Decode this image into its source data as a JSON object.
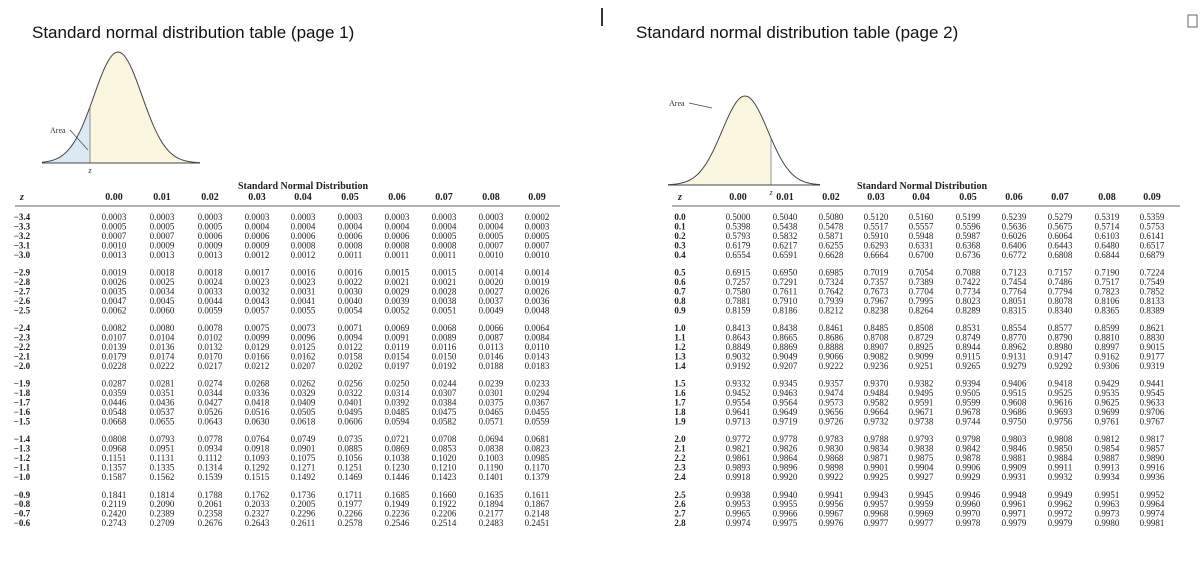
{
  "pages": [
    {
      "title": "Standard normal distribution table (page 1)",
      "graph": {
        "area_label": "Area",
        "z_label": "z"
      },
      "table": {
        "title": "Standard Normal Distribution",
        "header": [
          "z",
          "0.00",
          "0.01",
          "0.02",
          "0.03",
          "0.04",
          "0.05",
          "0.06",
          "0.07",
          "0.08",
          "0.09"
        ],
        "rows": [
          [
            "−3.4",
            "0.0003",
            "0.0003",
            "0.0003",
            "0.0003",
            "0.0003",
            "0.0003",
            "0.0003",
            "0.0003",
            "0.0003",
            "0.0002"
          ],
          [
            "−3.3",
            "0.0005",
            "0.0005",
            "0.0005",
            "0.0004",
            "0.0004",
            "0.0004",
            "0.0004",
            "0.0004",
            "0.0004",
            "0.0003"
          ],
          [
            "−3.2",
            "0.0007",
            "0.0007",
            "0.0006",
            "0.0006",
            "0.0006",
            "0.0006",
            "0.0006",
            "0.0005",
            "0.0005",
            "0.0005"
          ],
          [
            "−3.1",
            "0.0010",
            "0.0009",
            "0.0009",
            "0.0009",
            "0.0008",
            "0.0008",
            "0.0008",
            "0.0008",
            "0.0007",
            "0.0007"
          ],
          [
            "−3.0",
            "0.0013",
            "0.0013",
            "0.0013",
            "0.0012",
            "0.0012",
            "0.0011",
            "0.0011",
            "0.0011",
            "0.0010",
            "0.0010"
          ],
          [
            "−2.9",
            "0.0019",
            "0.0018",
            "0.0018",
            "0.0017",
            "0.0016",
            "0.0016",
            "0.0015",
            "0.0015",
            "0.0014",
            "0.0014"
          ],
          [
            "−2.8",
            "0.0026",
            "0.0025",
            "0.0024",
            "0.0023",
            "0.0023",
            "0.0022",
            "0.0021",
            "0.0021",
            "0.0020",
            "0.0019"
          ],
          [
            "−2.7",
            "0.0035",
            "0.0034",
            "0.0033",
            "0.0032",
            "0.0031",
            "0.0030",
            "0.0029",
            "0.0028",
            "0.0027",
            "0.0026"
          ],
          [
            "−2.6",
            "0.0047",
            "0.0045",
            "0.0044",
            "0.0043",
            "0.0041",
            "0.0040",
            "0.0039",
            "0.0038",
            "0.0037",
            "0.0036"
          ],
          [
            "−2.5",
            "0.0062",
            "0.0060",
            "0.0059",
            "0.0057",
            "0.0055",
            "0.0054",
            "0.0052",
            "0.0051",
            "0.0049",
            "0.0048"
          ],
          [
            "−2.4",
            "0.0082",
            "0.0080",
            "0.0078",
            "0.0075",
            "0.0073",
            "0.0071",
            "0.0069",
            "0.0068",
            "0.0066",
            "0.0064"
          ],
          [
            "−2.3",
            "0.0107",
            "0.0104",
            "0.0102",
            "0.0099",
            "0.0096",
            "0.0094",
            "0.0091",
            "0.0089",
            "0.0087",
            "0.0084"
          ],
          [
            "−2.2",
            "0.0139",
            "0.0136",
            "0.0132",
            "0.0129",
            "0.0125",
            "0.0122",
            "0.0119",
            "0.0116",
            "0.0113",
            "0.0110"
          ],
          [
            "−2.1",
            "0.0179",
            "0.0174",
            "0.0170",
            "0.0166",
            "0.0162",
            "0.0158",
            "0.0154",
            "0.0150",
            "0.0146",
            "0.0143"
          ],
          [
            "−2.0",
            "0.0228",
            "0.0222",
            "0.0217",
            "0.0212",
            "0.0207",
            "0.0202",
            "0.0197",
            "0.0192",
            "0.0188",
            "0.0183"
          ],
          [
            "−1.9",
            "0.0287",
            "0.0281",
            "0.0274",
            "0.0268",
            "0.0262",
            "0.0256",
            "0.0250",
            "0.0244",
            "0.0239",
            "0.0233"
          ],
          [
            "−1.8",
            "0.0359",
            "0.0351",
            "0.0344",
            "0.0336",
            "0.0329",
            "0.0322",
            "0.0314",
            "0.0307",
            "0.0301",
            "0.0294"
          ],
          [
            "−1.7",
            "0.0446",
            "0.0436",
            "0.0427",
            "0.0418",
            "0.0409",
            "0.0401",
            "0.0392",
            "0.0384",
            "0.0375",
            "0.0367"
          ],
          [
            "−1.6",
            "0.0548",
            "0.0537",
            "0.0526",
            "0.0516",
            "0.0505",
            "0.0495",
            "0.0485",
            "0.0475",
            "0.0465",
            "0.0455"
          ],
          [
            "−1.5",
            "0.0668",
            "0.0655",
            "0.0643",
            "0.0630",
            "0.0618",
            "0.0606",
            "0.0594",
            "0.0582",
            "0.0571",
            "0.0559"
          ],
          [
            "−1.4",
            "0.0808",
            "0.0793",
            "0.0778",
            "0.0764",
            "0.0749",
            "0.0735",
            "0.0721",
            "0.0708",
            "0.0694",
            "0.0681"
          ],
          [
            "−1.3",
            "0.0968",
            "0.0951",
            "0.0934",
            "0.0918",
            "0.0901",
            "0.0885",
            "0.0869",
            "0.0853",
            "0.0838",
            "0.0823"
          ],
          [
            "−1.2",
            "0.1151",
            "0.1131",
            "0.1112",
            "0.1093",
            "0.1075",
            "0.1056",
            "0.1038",
            "0.1020",
            "0.1003",
            "0.0985"
          ],
          [
            "−1.1",
            "0.1357",
            "0.1335",
            "0.1314",
            "0.1292",
            "0.1271",
            "0.1251",
            "0.1230",
            "0.1210",
            "0.1190",
            "0.1170"
          ],
          [
            "−1.0",
            "0.1587",
            "0.1562",
            "0.1539",
            "0.1515",
            "0.1492",
            "0.1469",
            "0.1446",
            "0.1423",
            "0.1401",
            "0.1379"
          ],
          [
            "−0.9",
            "0.1841",
            "0.1814",
            "0.1788",
            "0.1762",
            "0.1736",
            "0.1711",
            "0.1685",
            "0.1660",
            "0.1635",
            "0.1611"
          ],
          [
            "−0.8",
            "0.2119",
            "0.2090",
            "0.2061",
            "0.2033",
            "0.2005",
            "0.1977",
            "0.1949",
            "0.1922",
            "0.1894",
            "0.1867"
          ],
          [
            "−0.7",
            "0.2420",
            "0.2389",
            "0.2358",
            "0.2327",
            "0.2296",
            "0.2266",
            "0.2236",
            "0.2206",
            "0.2177",
            "0.2148"
          ],
          [
            "−0.6",
            "0.2743",
            "0.2709",
            "0.2676",
            "0.2643",
            "0.2611",
            "0.2578",
            "0.2546",
            "0.2514",
            "0.2483",
            "0.2451"
          ]
        ]
      }
    },
    {
      "title": "Standard normal distribution table (page 2)",
      "graph": {
        "area_label": "Area",
        "z_label": "z"
      },
      "table": {
        "title": "Standard Normal Distribution",
        "header": [
          "z",
          "0.00",
          "0.01",
          "0.02",
          "0.03",
          "0.04",
          "0.05",
          "0.06",
          "0.07",
          "0.08",
          "0.09"
        ],
        "rows": [
          [
            "0.0",
            "0.5000",
            "0.5040",
            "0.5080",
            "0.5120",
            "0.5160",
            "0.5199",
            "0.5239",
            "0.5279",
            "0.5319",
            "0.5359"
          ],
          [
            "0.1",
            "0.5398",
            "0.5438",
            "0.5478",
            "0.5517",
            "0.5557",
            "0.5596",
            "0.5636",
            "0.5675",
            "0.5714",
            "0.5753"
          ],
          [
            "0.2",
            "0.5793",
            "0.5832",
            "0.5871",
            "0.5910",
            "0.5948",
            "0.5987",
            "0.6026",
            "0.6064",
            "0.6103",
            "0.6141"
          ],
          [
            "0.3",
            "0.6179",
            "0.6217",
            "0.6255",
            "0.6293",
            "0.6331",
            "0.6368",
            "0.6406",
            "0.6443",
            "0.6480",
            "0.6517"
          ],
          [
            "0.4",
            "0.6554",
            "0.6591",
            "0.6628",
            "0.6664",
            "0.6700",
            "0.6736",
            "0.6772",
            "0.6808",
            "0.6844",
            "0.6879"
          ],
          [
            "0.5",
            "0.6915",
            "0.6950",
            "0.6985",
            "0.7019",
            "0.7054",
            "0.7088",
            "0.7123",
            "0.7157",
            "0.7190",
            "0.7224"
          ],
          [
            "0.6",
            "0.7257",
            "0.7291",
            "0.7324",
            "0.7357",
            "0.7389",
            "0.7422",
            "0.7454",
            "0.7486",
            "0.7517",
            "0.7549"
          ],
          [
            "0.7",
            "0.7580",
            "0.7611",
            "0.7642",
            "0.7673",
            "0.7704",
            "0.7734",
            "0.7764",
            "0.7794",
            "0.7823",
            "0.7852"
          ],
          [
            "0.8",
            "0.7881",
            "0.7910",
            "0.7939",
            "0.7967",
            "0.7995",
            "0.8023",
            "0.8051",
            "0.8078",
            "0.8106",
            "0.8133"
          ],
          [
            "0.9",
            "0.8159",
            "0.8186",
            "0.8212",
            "0.8238",
            "0.8264",
            "0.8289",
            "0.8315",
            "0.8340",
            "0.8365",
            "0.8389"
          ],
          [
            "1.0",
            "0.8413",
            "0.8438",
            "0.8461",
            "0.8485",
            "0.8508",
            "0.8531",
            "0.8554",
            "0.8577",
            "0.8599",
            "0.8621"
          ],
          [
            "1.1",
            "0.8643",
            "0.8665",
            "0.8686",
            "0.8708",
            "0.8729",
            "0.8749",
            "0.8770",
            "0.8790",
            "0.8810",
            "0.8830"
          ],
          [
            "1.2",
            "0.8849",
            "0.8869",
            "0.8888",
            "0.8907",
            "0.8925",
            "0.8944",
            "0.8962",
            "0.8980",
            "0.8997",
            "0.9015"
          ],
          [
            "1.3",
            "0.9032",
            "0.9049",
            "0.9066",
            "0.9082",
            "0.9099",
            "0.9115",
            "0.9131",
            "0.9147",
            "0.9162",
            "0.9177"
          ],
          [
            "1.4",
            "0.9192",
            "0.9207",
            "0.9222",
            "0.9236",
            "0.9251",
            "0.9265",
            "0.9279",
            "0.9292",
            "0.9306",
            "0.9319"
          ],
          [
            "1.5",
            "0.9332",
            "0.9345",
            "0.9357",
            "0.9370",
            "0.9382",
            "0.9394",
            "0.9406",
            "0.9418",
            "0.9429",
            "0.9441"
          ],
          [
            "1.6",
            "0.9452",
            "0.9463",
            "0.9474",
            "0.9484",
            "0.9495",
            "0.9505",
            "0.9515",
            "0.9525",
            "0.9535",
            "0.9545"
          ],
          [
            "1.7",
            "0.9554",
            "0.9564",
            "0.9573",
            "0.9582",
            "0.9591",
            "0.9599",
            "0.9608",
            "0.9616",
            "0.9625",
            "0.9633"
          ],
          [
            "1.8",
            "0.9641",
            "0.9649",
            "0.9656",
            "0.9664",
            "0.9671",
            "0.9678",
            "0.9686",
            "0.9693",
            "0.9699",
            "0.9706"
          ],
          [
            "1.9",
            "0.9713",
            "0.9719",
            "0.9726",
            "0.9732",
            "0.9738",
            "0.9744",
            "0.9750",
            "0.9756",
            "0.9761",
            "0.9767"
          ],
          [
            "2.0",
            "0.9772",
            "0.9778",
            "0.9783",
            "0.9788",
            "0.9793",
            "0.9798",
            "0.9803",
            "0.9808",
            "0.9812",
            "0.9817"
          ],
          [
            "2.1",
            "0.9821",
            "0.9826",
            "0.9830",
            "0.9834",
            "0.9838",
            "0.9842",
            "0.9846",
            "0.9850",
            "0.9854",
            "0.9857"
          ],
          [
            "2.2",
            "0.9861",
            "0.9864",
            "0.9868",
            "0.9871",
            "0.9875",
            "0.9878",
            "0.9881",
            "0.9884",
            "0.9887",
            "0.9890"
          ],
          [
            "2.3",
            "0.9893",
            "0.9896",
            "0.9898",
            "0.9901",
            "0.9904",
            "0.9906",
            "0.9909",
            "0.9911",
            "0.9913",
            "0.9916"
          ],
          [
            "2.4",
            "0.9918",
            "0.9920",
            "0.9922",
            "0.9925",
            "0.9927",
            "0.9929",
            "0.9931",
            "0.9932",
            "0.9934",
            "0.9936"
          ],
          [
            "2.5",
            "0.9938",
            "0.9940",
            "0.9941",
            "0.9943",
            "0.9945",
            "0.9946",
            "0.9948",
            "0.9949",
            "0.9951",
            "0.9952"
          ],
          [
            "2.6",
            "0.9953",
            "0.9955",
            "0.9956",
            "0.9957",
            "0.9959",
            "0.9960",
            "0.9961",
            "0.9962",
            "0.9963",
            "0.9964"
          ],
          [
            "2.7",
            "0.9965",
            "0.9966",
            "0.9967",
            "0.9968",
            "0.9969",
            "0.9970",
            "0.9971",
            "0.9972",
            "0.9973",
            "0.9974"
          ],
          [
            "2.8",
            "0.9974",
            "0.9975",
            "0.9976",
            "0.9977",
            "0.9977",
            "0.9978",
            "0.9979",
            "0.9979",
            "0.9980",
            "0.9981"
          ]
        ]
      }
    }
  ]
}
